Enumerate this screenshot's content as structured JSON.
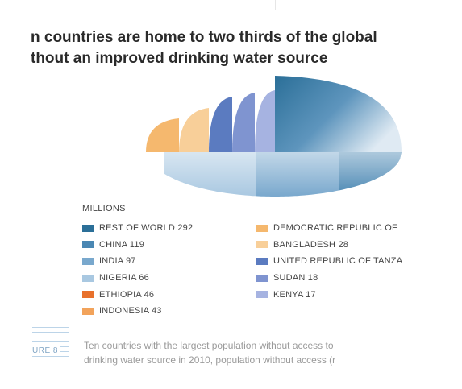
{
  "title_lines": [
    "n countries are home to two thirds of the global",
    "thout an improved drinking water source"
  ],
  "legend_heading": "MILLIONS",
  "legend_items": [
    {
      "label": "REST OF WORLD 292",
      "color": "#2b6f98"
    },
    {
      "label": "CHINA 119",
      "color": "#4a87b3"
    },
    {
      "label": "INDIA 97",
      "color": "#79a8cd"
    },
    {
      "label": "NIGERIA 66",
      "color": "#a9c8e1"
    },
    {
      "label": "ETHIOPIA 46",
      "color": "#e8712c"
    },
    {
      "label": "INDONESIA 43",
      "color": "#f2a35b"
    },
    {
      "label": "DEMOCRATIC REPUBLIC OF",
      "color": "#f5b86e"
    },
    {
      "label": "BANGLADESH 28",
      "color": "#f8cf99"
    },
    {
      "label": "UNITED REPUBLIC OF TANZA",
      "color": "#5b7bc0"
    },
    {
      "label": "SUDAN 18",
      "color": "#7f94d0"
    },
    {
      "label": "KENYA 17",
      "color": "#a6b3e1"
    }
  ],
  "figure_label": "URE 8",
  "caption_lines": [
    "Ten countries with the largest population without access to",
    "drinking water source in 2010, population without access (r"
  ],
  "chart_data": {
    "type": "pie",
    "title": "n countries are home to two thirds of the global / thout an improved drinking water source",
    "unit": "MILLIONS",
    "slices": [
      {
        "label": "REST OF WORLD",
        "value": 292
      },
      {
        "label": "CHINA",
        "value": 119
      },
      {
        "label": "INDIA",
        "value": 97
      },
      {
        "label": "NIGERIA",
        "value": 66
      },
      {
        "label": "ETHIOPIA",
        "value": 46
      },
      {
        "label": "INDONESIA",
        "value": 43
      },
      {
        "label": "DEMOCRATIC REPUBLIC OF"
      },
      {
        "label": "BANGLADESH",
        "value": 28
      },
      {
        "label": "UNITED REPUBLIC OF TANZA"
      },
      {
        "label": "SUDAN",
        "value": 18
      },
      {
        "label": "KENYA",
        "value": 17
      }
    ],
    "start": "top, clockwise",
    "style": "upper half shown as rising segments, lower half flattened"
  }
}
